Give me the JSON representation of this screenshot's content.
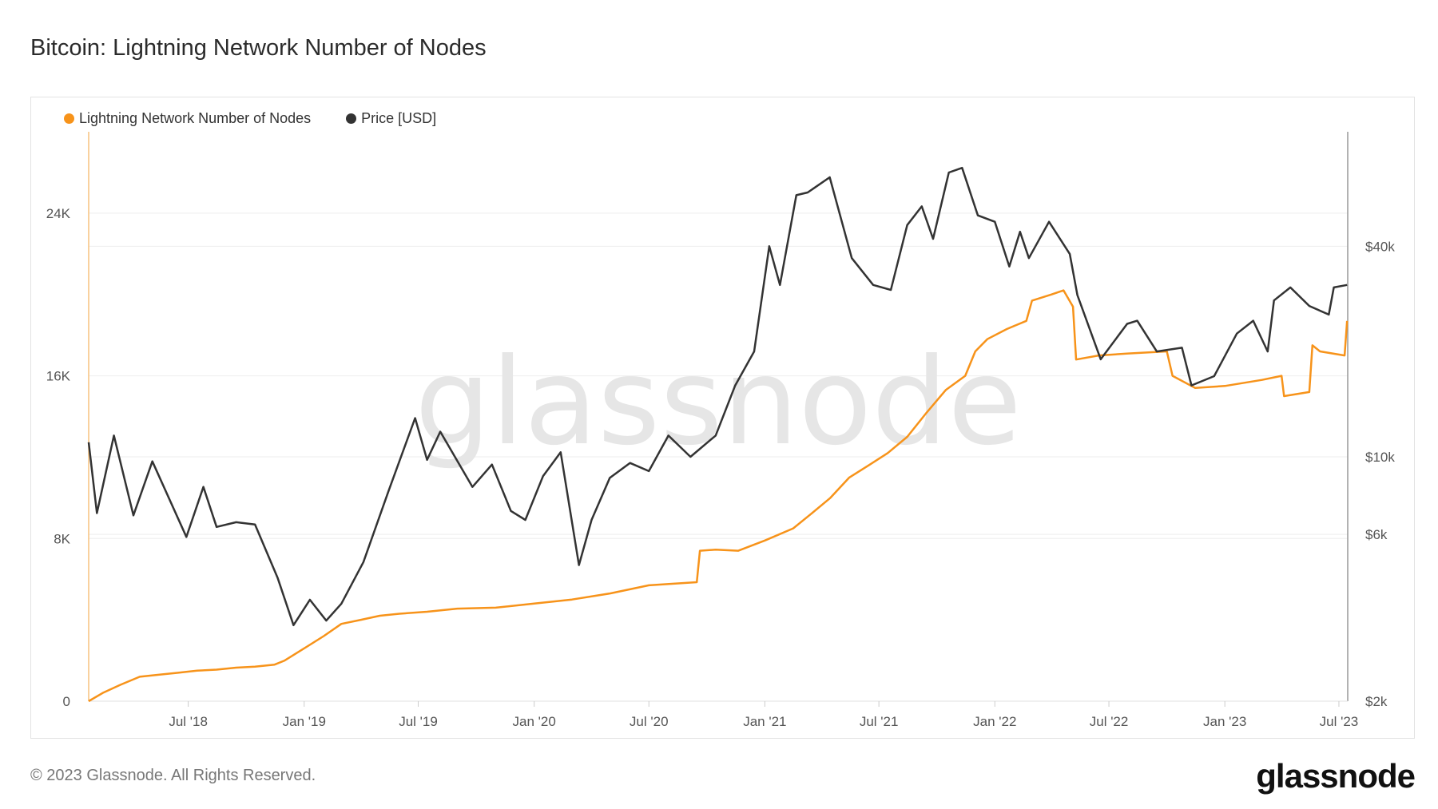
{
  "title": "Bitcoin: Lightning Network Number of Nodes",
  "footer": "© 2023 Glassnode. All Rights Reserved.",
  "logo": "glassnode",
  "watermark": "glassnode",
  "chart_data": {
    "type": "line",
    "title": "Bitcoin: Lightning Network Number of Nodes",
    "legend_position": "top-left",
    "grid": true,
    "x_range": [
      "2018-01-24",
      "2023-07-15"
    ],
    "x_ticks": [
      {
        "date": "2018-07-01",
        "label": "Jul '18"
      },
      {
        "date": "2019-01-01",
        "label": "Jan '19"
      },
      {
        "date": "2019-07-01",
        "label": "Jul '19"
      },
      {
        "date": "2020-01-01",
        "label": "Jan '20"
      },
      {
        "date": "2020-07-01",
        "label": "Jul '20"
      },
      {
        "date": "2021-01-01",
        "label": "Jan '21"
      },
      {
        "date": "2021-07-01",
        "label": "Jul '21"
      },
      {
        "date": "2022-01-01",
        "label": "Jan '22"
      },
      {
        "date": "2022-07-01",
        "label": "Jul '22"
      },
      {
        "date": "2023-01-01",
        "label": "Jan '23"
      },
      {
        "date": "2023-07-01",
        "label": "Jul '23"
      }
    ],
    "y_left": {
      "scale": "linear",
      "range": [
        0,
        28000
      ],
      "ticks": [
        {
          "v": 0,
          "label": "0"
        },
        {
          "v": 8000,
          "label": "8K"
        },
        {
          "v": 16000,
          "label": "16K"
        },
        {
          "v": 24000,
          "label": "24K"
        }
      ]
    },
    "y_right": {
      "scale": "log",
      "range": [
        2000,
        85000
      ],
      "ticks": [
        {
          "v": 2000,
          "label": "$2k"
        },
        {
          "v": 6000,
          "label": "$6k"
        },
        {
          "v": 10000,
          "label": "$10k"
        },
        {
          "v": 40000,
          "label": "$40k"
        }
      ]
    },
    "series": [
      {
        "name": "Lightning Network Number of Nodes",
        "axis": "left",
        "color": "#f7931a",
        "points": [
          [
            "2018-01-24",
            0
          ],
          [
            "2018-02-15",
            400
          ],
          [
            "2018-03-15",
            800
          ],
          [
            "2018-04-15",
            1200
          ],
          [
            "2018-05-15",
            1300
          ],
          [
            "2018-06-15",
            1400
          ],
          [
            "2018-07-15",
            1500
          ],
          [
            "2018-08-15",
            1550
          ],
          [
            "2018-09-15",
            1650
          ],
          [
            "2018-10-15",
            1700
          ],
          [
            "2018-11-15",
            1800
          ],
          [
            "2018-12-01",
            2000
          ],
          [
            "2019-01-01",
            2600
          ],
          [
            "2019-02-01",
            3200
          ],
          [
            "2019-03-01",
            3800
          ],
          [
            "2019-04-01",
            4000
          ],
          [
            "2019-05-01",
            4200
          ],
          [
            "2019-06-01",
            4300
          ],
          [
            "2019-07-15",
            4400
          ],
          [
            "2019-09-01",
            4550
          ],
          [
            "2019-11-01",
            4600
          ],
          [
            "2020-01-01",
            4800
          ],
          [
            "2020-03-01",
            5000
          ],
          [
            "2020-05-01",
            5300
          ],
          [
            "2020-07-01",
            5700
          ],
          [
            "2020-09-15",
            5850
          ],
          [
            "2020-09-20",
            7400
          ],
          [
            "2020-10-15",
            7450
          ],
          [
            "2020-11-20",
            7400
          ],
          [
            "2021-01-01",
            7900
          ],
          [
            "2021-02-15",
            8500
          ],
          [
            "2021-03-15",
            9200
          ],
          [
            "2021-04-15",
            10000
          ],
          [
            "2021-05-15",
            11000
          ],
          [
            "2021-06-15",
            11600
          ],
          [
            "2021-07-15",
            12200
          ],
          [
            "2021-08-15",
            13000
          ],
          [
            "2021-09-15",
            14200
          ],
          [
            "2021-10-15",
            15300
          ],
          [
            "2021-11-15",
            16000
          ],
          [
            "2021-12-01",
            17200
          ],
          [
            "2021-12-20",
            17800
          ],
          [
            "2022-01-20",
            18300
          ],
          [
            "2022-02-20",
            18700
          ],
          [
            "2022-03-01",
            19700
          ],
          [
            "2022-04-01",
            20000
          ],
          [
            "2022-04-20",
            20200
          ],
          [
            "2022-05-05",
            19400
          ],
          [
            "2022-05-10",
            16800
          ],
          [
            "2022-06-15",
            17000
          ],
          [
            "2022-08-01",
            17100
          ],
          [
            "2022-10-01",
            17200
          ],
          [
            "2022-10-10",
            16000
          ],
          [
            "2022-11-15",
            15400
          ],
          [
            "2023-01-01",
            15500
          ],
          [
            "2023-03-01",
            15800
          ],
          [
            "2023-04-01",
            16000
          ],
          [
            "2023-04-05",
            15000
          ],
          [
            "2023-05-15",
            15200
          ],
          [
            "2023-05-20",
            17500
          ],
          [
            "2023-06-01",
            17200
          ],
          [
            "2023-07-10",
            17000
          ],
          [
            "2023-07-14",
            18700
          ]
        ]
      },
      {
        "name": "Price [USD]",
        "axis": "right",
        "color": "#333333",
        "points": [
          [
            "2018-01-24",
            11000
          ],
          [
            "2018-02-06",
            6900
          ],
          [
            "2018-03-05",
            11500
          ],
          [
            "2018-04-05",
            6800
          ],
          [
            "2018-05-05",
            9700
          ],
          [
            "2018-06-28",
            5900
          ],
          [
            "2018-07-25",
            8200
          ],
          [
            "2018-08-15",
            6300
          ],
          [
            "2018-09-15",
            6500
          ],
          [
            "2018-10-15",
            6400
          ],
          [
            "2018-11-20",
            4500
          ],
          [
            "2018-12-15",
            3300
          ],
          [
            "2019-01-10",
            3900
          ],
          [
            "2019-02-05",
            3400
          ],
          [
            "2019-03-01",
            3800
          ],
          [
            "2019-04-05",
            5000
          ],
          [
            "2019-05-15",
            8000
          ],
          [
            "2019-06-26",
            12900
          ],
          [
            "2019-07-15",
            9800
          ],
          [
            "2019-08-05",
            11800
          ],
          [
            "2019-09-25",
            8200
          ],
          [
            "2019-10-26",
            9500
          ],
          [
            "2019-11-25",
            7000
          ],
          [
            "2019-12-18",
            6600
          ],
          [
            "2020-01-15",
            8800
          ],
          [
            "2020-02-12",
            10300
          ],
          [
            "2020-03-12",
            4900
          ],
          [
            "2020-04-01",
            6600
          ],
          [
            "2020-04-30",
            8700
          ],
          [
            "2020-06-01",
            9600
          ],
          [
            "2020-07-01",
            9100
          ],
          [
            "2020-08-01",
            11500
          ],
          [
            "2020-09-05",
            10000
          ],
          [
            "2020-10-15",
            11500
          ],
          [
            "2020-11-15",
            16000
          ],
          [
            "2020-12-15",
            20000
          ],
          [
            "2021-01-08",
            40000
          ],
          [
            "2021-01-25",
            31000
          ],
          [
            "2021-02-20",
            56000
          ],
          [
            "2021-03-10",
            57000
          ],
          [
            "2021-04-14",
            63000
          ],
          [
            "2021-05-19",
            37000
          ],
          [
            "2021-06-22",
            31000
          ],
          [
            "2021-07-20",
            30000
          ],
          [
            "2021-08-15",
            46000
          ],
          [
            "2021-09-07",
            52000
          ],
          [
            "2021-09-25",
            42000
          ],
          [
            "2021-10-20",
            65000
          ],
          [
            "2021-11-10",
            67000
          ],
          [
            "2021-12-05",
            49000
          ],
          [
            "2022-01-01",
            47000
          ],
          [
            "2022-01-24",
            35000
          ],
          [
            "2022-02-10",
            44000
          ],
          [
            "2022-02-24",
            37000
          ],
          [
            "2022-03-28",
            47000
          ],
          [
            "2022-04-30",
            38000
          ],
          [
            "2022-05-12",
            29000
          ],
          [
            "2022-06-18",
            19000
          ],
          [
            "2022-07-30",
            24000
          ],
          [
            "2022-08-15",
            24500
          ],
          [
            "2022-09-15",
            20000
          ],
          [
            "2022-10-25",
            20500
          ],
          [
            "2022-11-09",
            16000
          ],
          [
            "2022-12-15",
            17000
          ],
          [
            "2023-01-20",
            22500
          ],
          [
            "2023-02-15",
            24500
          ],
          [
            "2023-03-10",
            20000
          ],
          [
            "2023-03-20",
            28000
          ],
          [
            "2023-04-15",
            30500
          ],
          [
            "2023-05-15",
            27000
          ],
          [
            "2023-06-15",
            25500
          ],
          [
            "2023-06-23",
            30500
          ],
          [
            "2023-07-14",
            31000
          ]
        ]
      }
    ]
  }
}
